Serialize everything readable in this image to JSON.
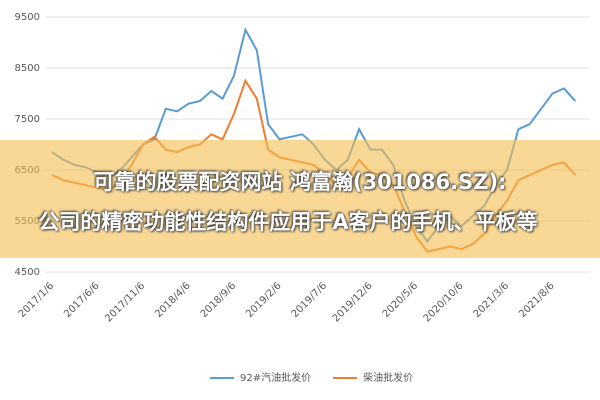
{
  "chart_data": {
    "type": "line",
    "categories": [
      "2017/1/6",
      null,
      null,
      null,
      "2017/6/6",
      null,
      null,
      null,
      "2017/11/6",
      null,
      null,
      null,
      "2018/4/6",
      null,
      null,
      null,
      "2018/9/6",
      null,
      null,
      null,
      "2019/2/6",
      null,
      null,
      null,
      "2019/7/6",
      null,
      null,
      null,
      "2019/12/6",
      null,
      null,
      null,
      "2020/5/6",
      null,
      null,
      null,
      "2020/10/6",
      null,
      null,
      null,
      "2021/3/6",
      null,
      null,
      null,
      "2021/8/6",
      null,
      null
    ],
    "series": [
      {
        "name": "92#汽油批发价",
        "color": "#5b9bd5",
        "values": [
          6850,
          6700,
          6600,
          6550,
          6450,
          6350,
          6500,
          6750,
          7000,
          7100,
          7700,
          7650,
          7800,
          7850,
          8050,
          7900,
          8350,
          9250,
          8850,
          7400,
          7100,
          7150,
          7200,
          7000,
          6700,
          6500,
          6700,
          7300,
          6900,
          6900,
          6600,
          5900,
          5400,
          5100,
          5400,
          5600,
          5400,
          5600,
          5800,
          6200,
          6500,
          7300,
          7400,
          7700,
          8000,
          8100,
          7850
        ]
      },
      {
        "name": "柴油批发价",
        "color": "#ed7d31",
        "values": [
          6400,
          6300,
          6250,
          6200,
          6150,
          6100,
          6300,
          6600,
          7000,
          7150,
          6900,
          6850,
          6950,
          7000,
          7200,
          7100,
          7600,
          8250,
          7900,
          6900,
          6750,
          6700,
          6650,
          6600,
          6400,
          6200,
          6350,
          6700,
          6450,
          6400,
          6200,
          5700,
          5200,
          4900,
          4950,
          5000,
          4950,
          5050,
          5250,
          5600,
          5900,
          6300,
          6400,
          6500,
          6600,
          6650,
          6400
        ]
      }
    ],
    "ylim": [
      4500,
      9500
    ],
    "yticks": [
      4500,
      5500,
      6500,
      7500,
      8500,
      9500
    ],
    "grid": true,
    "legend": "bottom"
  },
  "banner": {
    "lines": [
      "可靠的股票配资网站 鸿富瀚(301086.SZ):",
      "公司的精密功能性结构件应用于A客户的手机、平板等"
    ]
  }
}
